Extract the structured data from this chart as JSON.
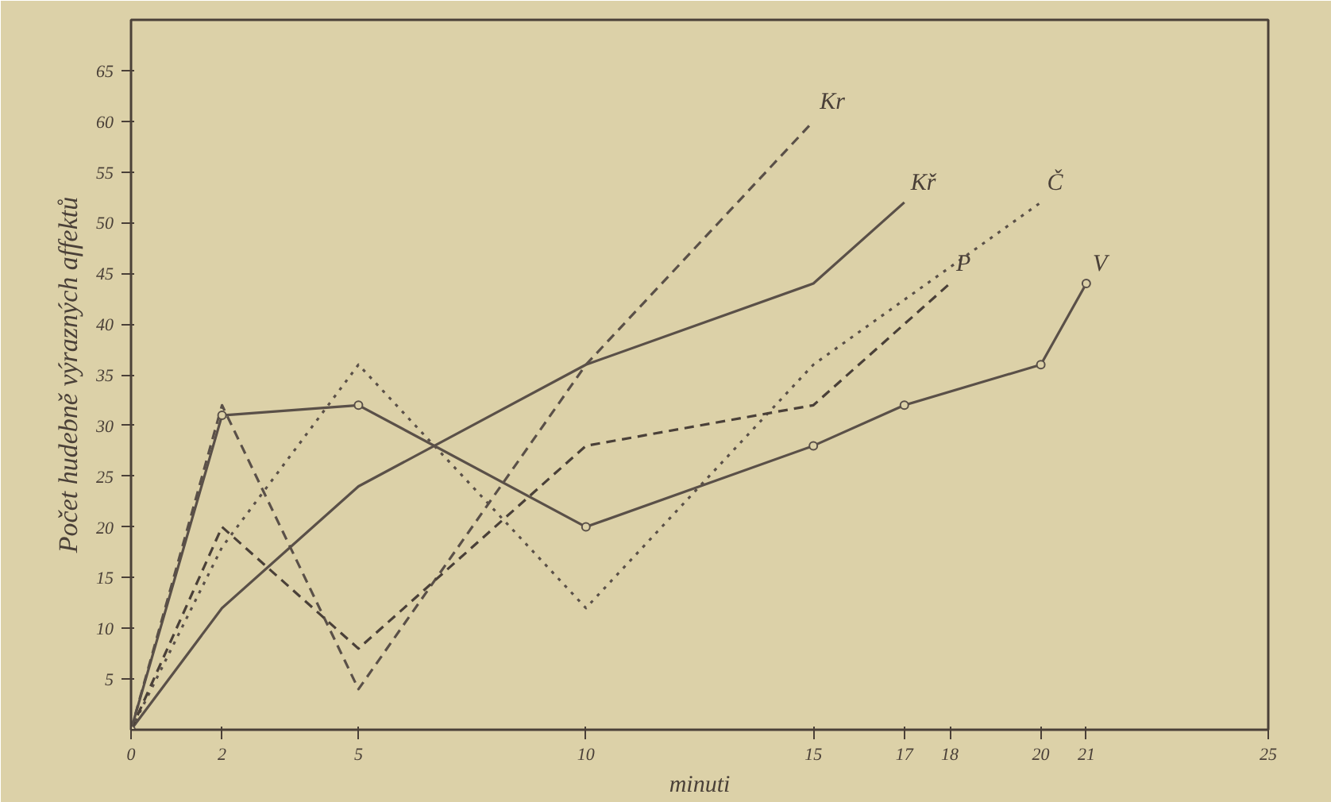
{
  "chart_data": {
    "type": "line",
    "xlabel": "minuti",
    "ylabel": "Počet hudebně výrazných affektů",
    "xlim": [
      0,
      25
    ],
    "ylim": [
      0,
      70
    ],
    "xticks": [
      0,
      2,
      5,
      10,
      15,
      17,
      18,
      20,
      21,
      25
    ],
    "yticks": [
      5,
      10,
      15,
      20,
      25,
      30,
      35,
      40,
      45,
      50,
      55,
      60,
      65
    ],
    "series": [
      {
        "name": "Kr",
        "color": "#5a5048",
        "x": [
          0,
          2,
          5,
          10,
          15
        ],
        "values": [
          0,
          32,
          4,
          36,
          60
        ],
        "line_style": "dashed",
        "marker": "none"
      },
      {
        "name": "Kř",
        "color": "#5a5048",
        "x": [
          0,
          2,
          5,
          10,
          15,
          17
        ],
        "values": [
          0,
          12,
          24,
          36,
          44,
          52
        ],
        "line_style": "solid",
        "marker": "none"
      },
      {
        "name": "Č",
        "color": "#5a5048",
        "x": [
          0,
          2,
          5,
          10,
          15,
          20
        ],
        "values": [
          0,
          18,
          36,
          12,
          36,
          52
        ],
        "line_style": "dotted",
        "marker": "none"
      },
      {
        "name": "P",
        "color": "#4a4038",
        "x": [
          0,
          2,
          5,
          10,
          15,
          18
        ],
        "values": [
          0,
          20,
          8,
          28,
          32,
          44
        ],
        "line_style": "dashed",
        "marker": "none"
      },
      {
        "name": "V",
        "color": "#5a5048",
        "x": [
          0,
          2,
          5,
          10,
          15,
          17,
          20,
          21
        ],
        "values": [
          0,
          31,
          32,
          20,
          28,
          32,
          36,
          44
        ],
        "line_style": "solid",
        "marker": "circle"
      }
    ]
  }
}
